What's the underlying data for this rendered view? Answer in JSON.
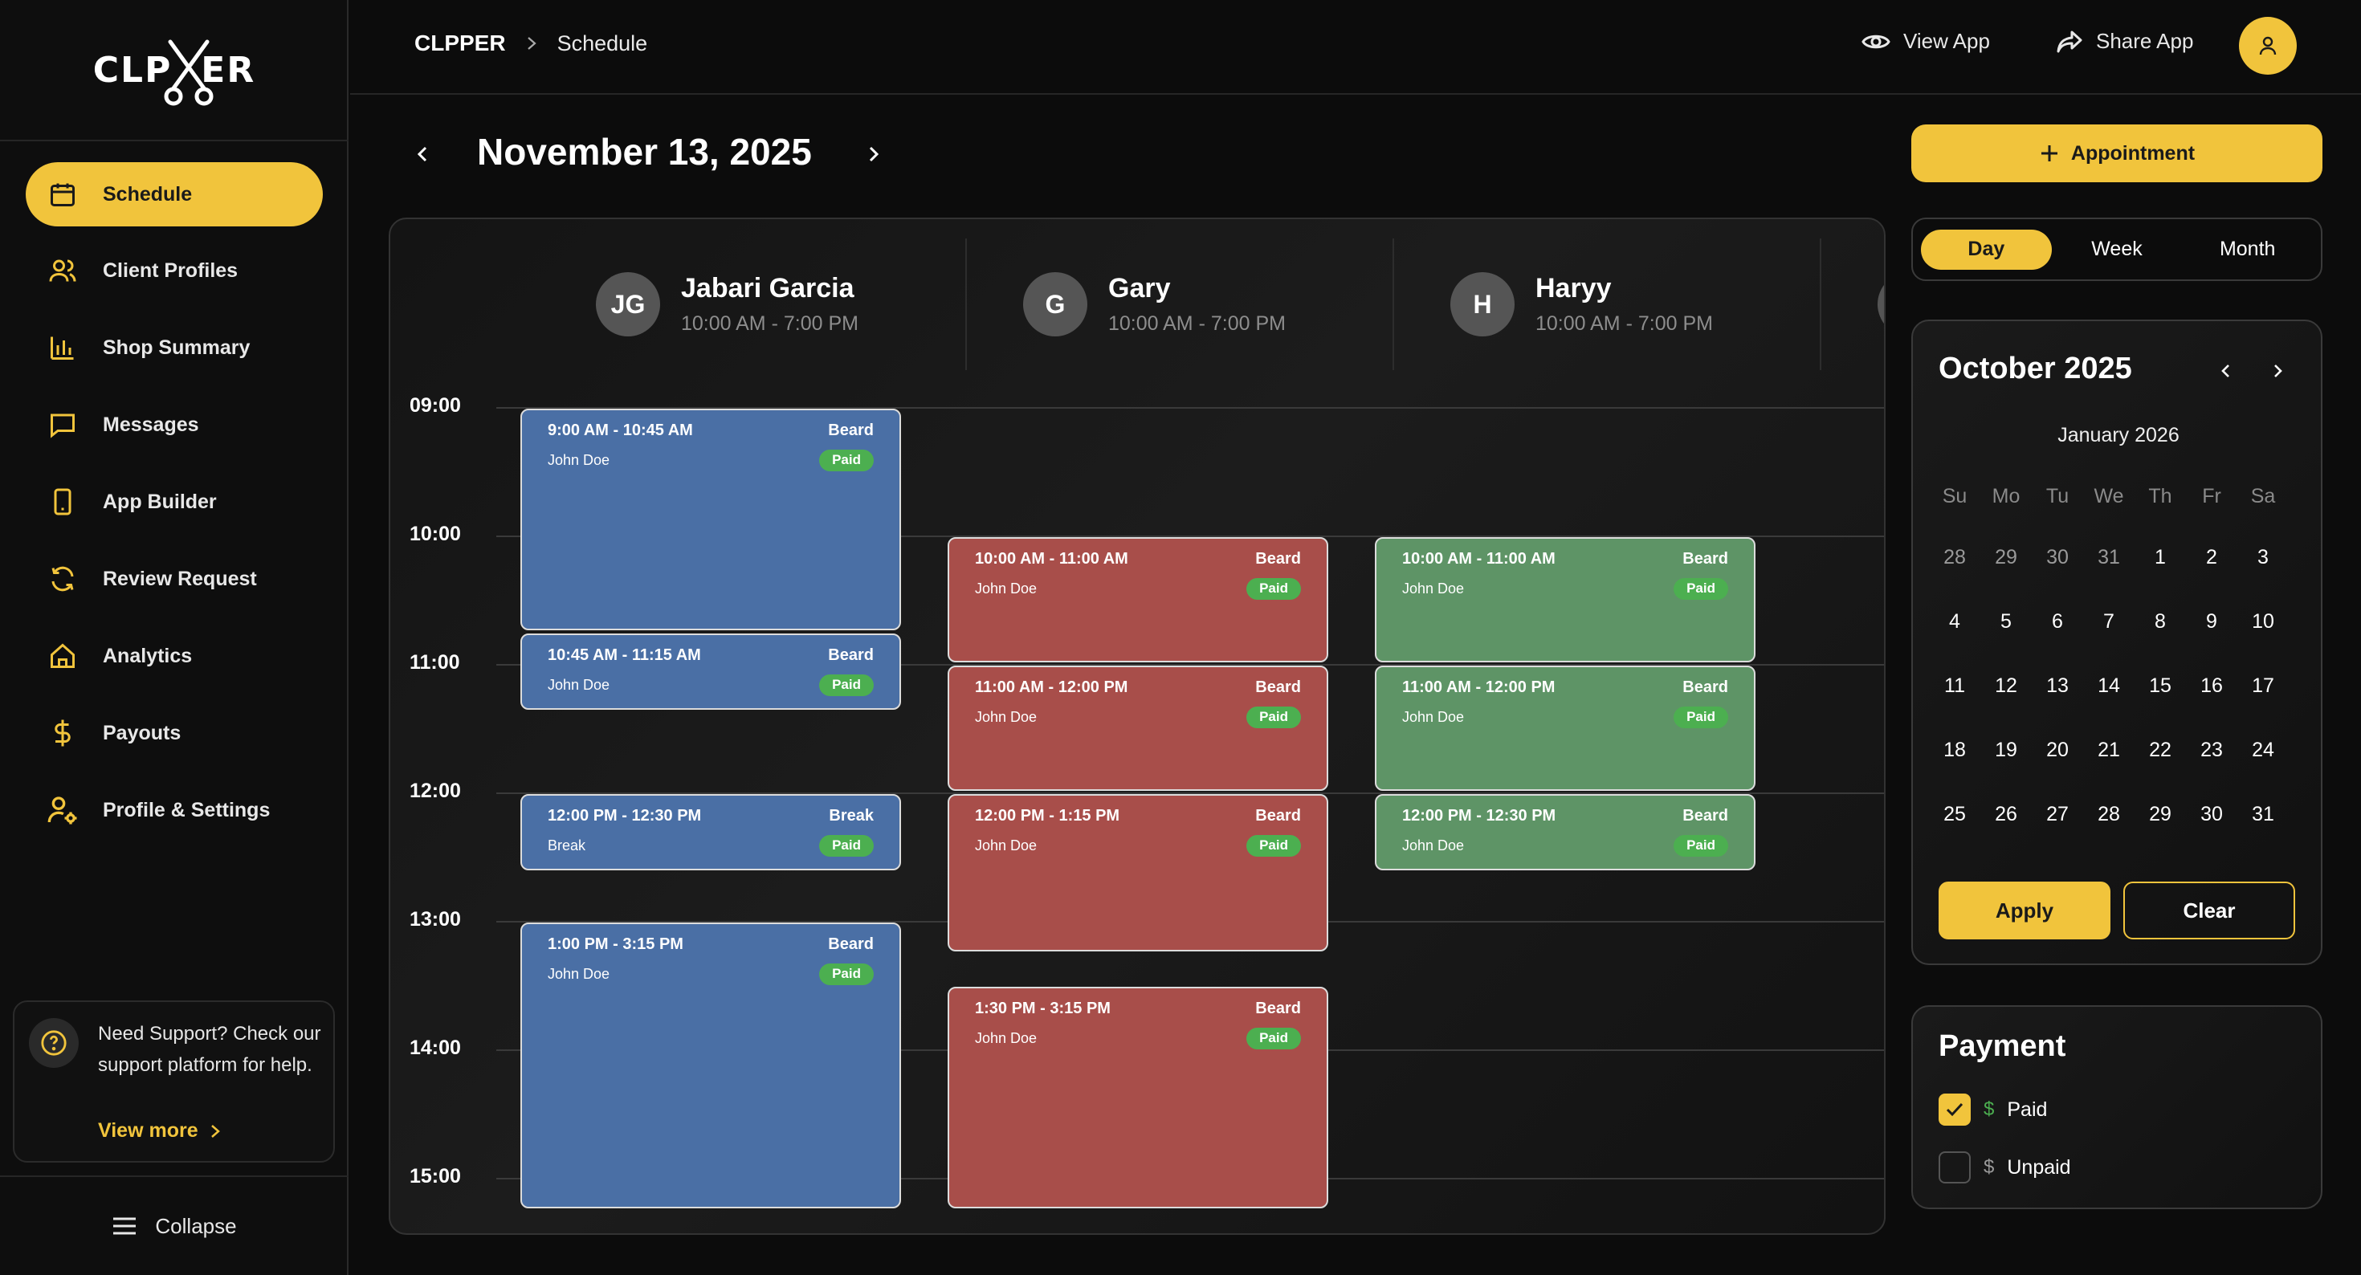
{
  "brand": {
    "logo_text": "CLPXER"
  },
  "sidebar": {
    "items": [
      {
        "label": "Schedule",
        "icon": "calendar-icon",
        "active": true
      },
      {
        "label": "Client Profiles",
        "icon": "users-icon"
      },
      {
        "label": "Shop Summary",
        "icon": "bar-chart-icon"
      },
      {
        "label": "Messages",
        "icon": "message-icon"
      },
      {
        "label": "App Builder",
        "icon": "phone-icon"
      },
      {
        "label": "Review Request",
        "icon": "refresh-icon"
      },
      {
        "label": "Analytics",
        "icon": "home-icon"
      },
      {
        "label": "Payouts",
        "icon": "dollar-icon"
      },
      {
        "label": "Profile & Settings",
        "icon": "user-gear-icon"
      }
    ],
    "support": {
      "text": "Need Support? Check our support platform for help.",
      "link": "View more"
    },
    "collapse": "Collapse"
  },
  "topbar": {
    "crumb_root": "CLPPER",
    "crumb_page": "Schedule",
    "view_app": "View App",
    "share_app": "Share App"
  },
  "schedule": {
    "date_title": "November 13, 2025",
    "add_button": "Appointment",
    "staff": [
      {
        "initials": "JG",
        "name": "Jabari Garcia",
        "hours": "10:00 AM - 7:00 PM"
      },
      {
        "initials": "G",
        "name": "Gary",
        "hours": "10:00 AM - 7:00 PM"
      },
      {
        "initials": "H",
        "name": "Haryy",
        "hours": "10:00 AM - 7:00 PM"
      }
    ],
    "times": [
      "09:00",
      "10:00",
      "11:00",
      "12:00",
      "13:00",
      "14:00",
      "15:00"
    ],
    "events": [
      {
        "col": 0,
        "start": 9.0,
        "end": 10.75,
        "time": "9:00 AM - 10:45 AM",
        "service": "Beard",
        "client": "John Doe",
        "status": "Paid",
        "color": "blue"
      },
      {
        "col": 0,
        "start": 10.75,
        "end": 11.37,
        "time": "10:45 AM - 11:15 AM",
        "service": "Beard",
        "client": "John Doe",
        "status": "Paid",
        "color": "blue"
      },
      {
        "col": 0,
        "start": 12.0,
        "end": 12.62,
        "time": "12:00 PM - 12:30 PM",
        "service": "Break",
        "client": "Break",
        "status": "Paid",
        "color": "blue"
      },
      {
        "col": 0,
        "start": 13.0,
        "end": 15.25,
        "time": "1:00 PM - 3:15 PM",
        "service": "Beard",
        "client": "John Doe",
        "status": "Paid",
        "color": "blue"
      },
      {
        "col": 1,
        "start": 10.0,
        "end": 11.0,
        "time": "10:00 AM - 11:00 AM",
        "service": "Beard",
        "client": "John Doe",
        "status": "Paid",
        "color": "red"
      },
      {
        "col": 1,
        "start": 11.0,
        "end": 12.0,
        "time": "11:00 AM - 12:00 PM",
        "service": "Beard",
        "client": "John Doe",
        "status": "Paid",
        "color": "red"
      },
      {
        "col": 1,
        "start": 12.0,
        "end": 13.25,
        "time": "12:00 PM - 1:15 PM",
        "service": "Beard",
        "client": "John Doe",
        "status": "Paid",
        "color": "red"
      },
      {
        "col": 1,
        "start": 13.5,
        "end": 15.25,
        "time": "1:30 PM - 3:15 PM",
        "service": "Beard",
        "client": "John Doe",
        "status": "Paid",
        "color": "red"
      },
      {
        "col": 2,
        "start": 10.0,
        "end": 11.0,
        "time": "10:00 AM - 11:00 AM",
        "service": "Beard",
        "client": "John Doe",
        "status": "Paid",
        "color": "green"
      },
      {
        "col": 2,
        "start": 11.0,
        "end": 12.0,
        "time": "11:00 AM - 12:00 PM",
        "service": "Beard",
        "client": "John Doe",
        "status": "Paid",
        "color": "green"
      },
      {
        "col": 2,
        "start": 12.0,
        "end": 12.62,
        "time": "12:00 PM - 12:30 PM",
        "service": "Beard",
        "client": "John Doe",
        "status": "Paid",
        "color": "green"
      }
    ]
  },
  "views": [
    "Day",
    "Week",
    "Month"
  ],
  "active_view": "Day",
  "mini_calendar": {
    "title": "October 2025",
    "subtitle": "January 2026",
    "dows": [
      "Su",
      "Mo",
      "Tu",
      "We",
      "Th",
      "Fr",
      "Sa"
    ],
    "days": [
      {
        "d": "28",
        "muted": true
      },
      {
        "d": "29",
        "muted": true
      },
      {
        "d": "30",
        "muted": true
      },
      {
        "d": "31",
        "muted": true
      },
      {
        "d": "1"
      },
      {
        "d": "2"
      },
      {
        "d": "3"
      },
      {
        "d": "4"
      },
      {
        "d": "5"
      },
      {
        "d": "6"
      },
      {
        "d": "7"
      },
      {
        "d": "8"
      },
      {
        "d": "9"
      },
      {
        "d": "10"
      },
      {
        "d": "11"
      },
      {
        "d": "12"
      },
      {
        "d": "13"
      },
      {
        "d": "14"
      },
      {
        "d": "15"
      },
      {
        "d": "16"
      },
      {
        "d": "17"
      },
      {
        "d": "18"
      },
      {
        "d": "19"
      },
      {
        "d": "20"
      },
      {
        "d": "21"
      },
      {
        "d": "22"
      },
      {
        "d": "23"
      },
      {
        "d": "24"
      },
      {
        "d": "25"
      },
      {
        "d": "26"
      },
      {
        "d": "27"
      },
      {
        "d": "28"
      },
      {
        "d": "29"
      },
      {
        "d": "30"
      },
      {
        "d": "31"
      }
    ],
    "apply": "Apply",
    "clear": "Clear"
  },
  "payment": {
    "title": "Payment",
    "options": [
      {
        "label": "Paid",
        "symbol": "$",
        "checked": true
      },
      {
        "label": "Unpaid",
        "symbol": "$",
        "checked": false
      }
    ]
  },
  "colors": {
    "accent": "#f1c43c",
    "blue": "#4a6fa5",
    "red": "#a84e4a",
    "green": "#5e9466",
    "paid": "#4caf50"
  }
}
